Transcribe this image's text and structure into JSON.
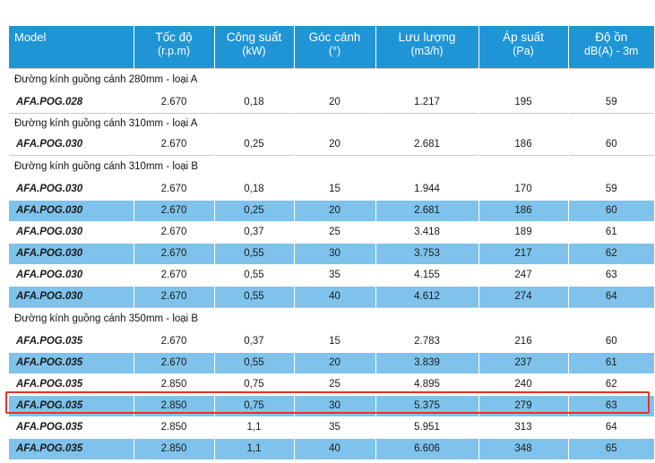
{
  "headers": [
    {
      "l1": "Model",
      "l2": ""
    },
    {
      "l1": "Tốc độ",
      "l2": "(r.p.m)"
    },
    {
      "l1": "Công suất",
      "l2": "(kW)"
    },
    {
      "l1": "Góc cánh",
      "l2": "(°)"
    },
    {
      "l1": "Lưu lượng",
      "l2": "(m3/h)"
    },
    {
      "l1": "Áp suất",
      "l2": "(Pa)"
    },
    {
      "l1": "Độ ồn",
      "l2": "dB(A) - 3m"
    }
  ],
  "groups": [
    {
      "title": "Đường kính guồng cánh 280mm - loại A",
      "rows": [
        [
          "AFA.POG.028",
          "2.670",
          "0,18",
          "20",
          "1.217",
          "195",
          "59"
        ]
      ]
    },
    {
      "title": "Đường kính guồng cánh 310mm - loại A",
      "rows": [
        [
          "AFA.POG.030",
          "2.670",
          "0,25",
          "20",
          "2.681",
          "186",
          "60"
        ]
      ]
    },
    {
      "title": "Đường kính guồng cánh 310mm - loại B",
      "rows": [
        [
          "AFA.POG.030",
          "2.670",
          "0,18",
          "15",
          "1.944",
          "170",
          "59"
        ],
        [
          "AFA.POG.030",
          "2.670",
          "0,25",
          "20",
          "2.681",
          "186",
          "60"
        ],
        [
          "AFA.POG.030",
          "2.670",
          "0,37",
          "25",
          "3.418",
          "189",
          "61"
        ],
        [
          "AFA.POG.030",
          "2.670",
          "0,55",
          "30",
          "3.753",
          "217",
          "62"
        ],
        [
          "AFA.POG.030",
          "2.670",
          "0,55",
          "35",
          "4.155",
          "247",
          "63"
        ],
        [
          "AFA.POG.030",
          "2.670",
          "0,55",
          "40",
          "4.612",
          "274",
          "64"
        ]
      ]
    },
    {
      "title": "Đường kính guồng cánh 350mm - loại B",
      "rows": [
        [
          "AFA.POG.035",
          "2.670",
          "0,37",
          "15",
          "2.783",
          "216",
          "60"
        ],
        [
          "AFA.POG.035",
          "2.670",
          "0,55",
          "20",
          "3.839",
          "237",
          "61"
        ],
        [
          "AFA.POG.035",
          "2.850",
          "0,75",
          "25",
          "4.895",
          "240",
          "62"
        ],
        [
          "AFA.POG.035",
          "2.850",
          "0,75",
          "30",
          "5.375",
          "279",
          "63"
        ],
        [
          "AFA.POG.035",
          "2.850",
          "1,1",
          "35",
          "5.951",
          "313",
          "64"
        ],
        [
          "AFA.POG.035",
          "2.850",
          "1,1",
          "40",
          "6.606",
          "348",
          "65"
        ]
      ]
    }
  ],
  "colors": {
    "header_bg": "#1f95d6",
    "row_blue": "#7fc3ec",
    "highlight_border": "#e4332c"
  },
  "highlighted_row": {
    "group": 3,
    "row": 3
  }
}
